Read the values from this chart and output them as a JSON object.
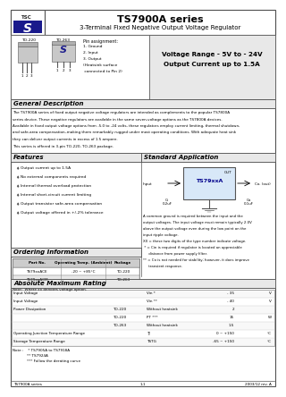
{
  "title": "TS7900A series",
  "subtitle": "3-Terminal Fixed Negative Output Voltage Regulator",
  "bg_color": "#ffffff",
  "voltage_range_text1": "Voltage Range - 5V to - 24V",
  "voltage_range_text2": "Output Current up to 1.5A",
  "pin_assignment_title": "Pin assignment:",
  "pin_assignment": [
    "1. Ground",
    "2. Input",
    "3. Output",
    "(Heatsink surface",
    " connected to Pin 2)"
  ],
  "to220_label": "TO-220",
  "to263_label": "TO-263",
  "general_desc_title": "General Description",
  "general_desc_lines": [
    "The TS7900A series of fixed output negative voltage regulators are intended as complements to the popular TS7800A",
    "series device. These negative regulators are available in the same seven-voltage options as the TS7800A devices.",
    "Available in fixed output voltage options from -5.0 to -24 volts, these regulators employ current limiting, thermal shutdown,",
    "and safe-area compensation–making them remarkably rugged under most operating conditions. With adequate heat sink",
    "they can deliver output currents in excess of 1.5 ampere.",
    "This series is offered in 3-pin TO-220, TO-263 package."
  ],
  "features_title": "Features",
  "features": [
    "Output current up to 1.5A",
    "No external components required",
    "Internal thermal overload protection",
    "Internal short-circuit current limiting",
    "Output transistor safe-area compensation",
    "Output voltage offered in +/-2% tolerance"
  ],
  "std_app_title": "Standard Application",
  "std_app_notes": [
    "A common ground is required between the input and the",
    "output voltages. The input voltage must remain typically 2.0V",
    "above the output voltage even during the low point on the",
    "input ripple voltage.",
    "XX = these two digits of the type number indicate voltage.",
    " * = Cin is required if regulator is located an appreciable",
    "     distance from power supply filter.",
    "** = Co is not needed for stability; however, it does improve",
    "     transient response."
  ],
  "ordering_title": "Ordering Information",
  "ordering_headers": [
    "Part No.",
    "Operating Temp.\n(Ambient)",
    "Package"
  ],
  "ordering_rows": [
    [
      "TS79xxACE",
      "-20 ~ +85°C",
      "TO-220"
    ],
    [
      "TS79xxACM",
      "",
      "TO-263"
    ]
  ],
  "ordering_note": "Note:  Where xx denotes voltage option.",
  "abs_max_title": "Absolute Maximum Rating",
  "abs_max_rows": [
    [
      "Input Voltage",
      "",
      "Vin *",
      "- 35",
      "V"
    ],
    [
      "Input Voltage",
      "",
      "Vin **",
      "- 40",
      "V"
    ],
    [
      "Power Dissipation",
      "TO-220",
      "Without heatsink",
      "2",
      ""
    ],
    [
      "",
      "TO-220",
      "PT ***",
      "15",
      "W"
    ],
    [
      "",
      "TO-263",
      "Without heatsink",
      "1.5",
      ""
    ],
    [
      "Operating Junction Temperature Range",
      "",
      "TJ",
      "0 ~ +150",
      "°C"
    ],
    [
      "Storage Temperature Range",
      "",
      "TSTG",
      "-65 ~ +150",
      "°C"
    ]
  ],
  "abs_notes": [
    "* TS7905A to TS7918A",
    "** TS7924A",
    "*** Follow the derating curve"
  ],
  "footer_left": "TS7900A series",
  "footer_center": "1-1",
  "footer_right": "2003/12 rev. A",
  "gray_light": "#e8e8e8",
  "gray_medium": "#cccccc",
  "gray_dark": "#aaaaaa",
  "blue_dark": "#1a1a8c",
  "section_title_bg": "#d8d8d8"
}
